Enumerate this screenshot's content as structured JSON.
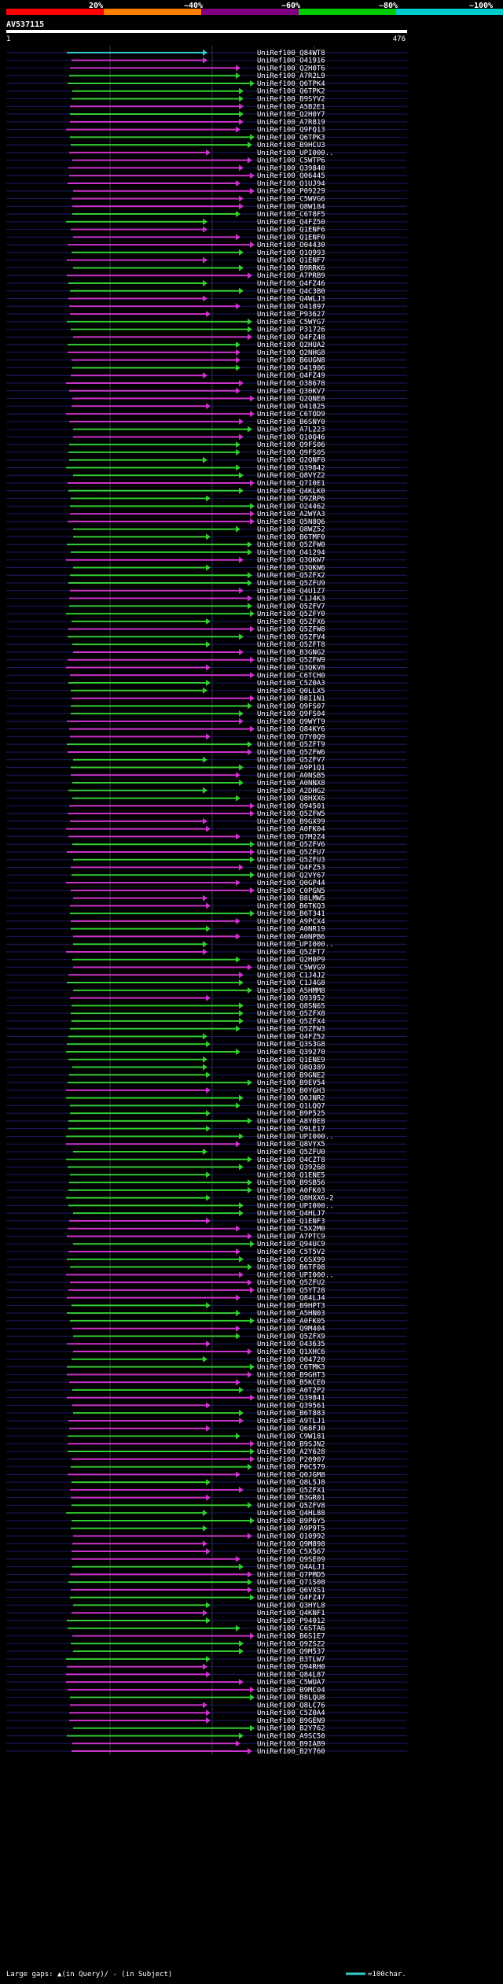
{
  "header": {
    "scale_labels": [
      "20%",
      "~40%",
      "~60%",
      "~80%",
      "~100%"
    ],
    "scale_colors": [
      "#ff0000",
      "#ff8000",
      "#800080",
      "#00cc00",
      "#00cccc"
    ],
    "query_id": "AV537115",
    "query_start": "1",
    "query_end": "476"
  },
  "footer": {
    "gaps_text": "Large gaps: ▲(in Query)/ - (in Subject)",
    "scale_text": "=100char."
  },
  "colors": {
    "magenta": "#cc33cc",
    "green": "#33cc33",
    "cyan": "#33cccc"
  },
  "chart_data": {
    "type": "alignment",
    "query_length": 476,
    "hits": [
      "UniRef100_Q84WT8",
      "UniRef100_O41916",
      "UniRef100_Q2H0T6",
      "UniRef100_A7R2L9",
      "UniRef100_Q6TPK4",
      "UniRef100_Q6TPK2",
      "UniRef100_B9SYV2",
      "UniRef100_A5B2E1",
      "UniRef100_Q2H0Y7",
      "UniRef100_A7R819",
      "UniRef100_Q9FQ13",
      "UniRef100_Q6TPK3",
      "UniRef100_B9HCU3",
      "UniRef100_UPI000..",
      "UniRef100_C5WTP6",
      "UniRef100_Q39840",
      "UniRef100_Q06445",
      "UniRef100_Q1UJ94",
      "UniRef100_P09229",
      "UniRef100_C5WVG6",
      "UniRef100_Q8W184",
      "UniRef100_C6T8F5",
      "UniRef100_Q4FZ50",
      "UniRef100_Q1ENF6",
      "UniRef100_Q1ENF0",
      "UniRef100_O04430",
      "UniRef100_Q1Q993",
      "UniRef100_Q1ENF7",
      "UniRef100_B9RRK6",
      "UniRef100_A7PRB9",
      "UniRef100_Q4FZ46",
      "UniRef100_Q4C3B0",
      "UniRef100_Q4WLJ3",
      "UniRef100_O41897",
      "UniRef100_P93627",
      "UniRef100_C5WYG7",
      "UniRef100_P31726",
      "UniRef100_Q4FZ48",
      "UniRef100_Q2HUA2",
      "UniRef100_Q2NHG8",
      "UniRef100_B6UGN8",
      "UniRef100_O41906",
      "UniRef100_Q4FZ49",
      "UniRef100_O38678",
      "UniRef100_Q30KV7",
      "UniRef100_Q2QNE8",
      "UniRef100_O41825",
      "UniRef100_C6TOD9",
      "UniRef100_B6SNY0",
      "UniRef100_A7L223",
      "UniRef100_Q10Q46",
      "UniRef100_Q9FS06",
      "UniRef100_Q9FS05",
      "UniRef100_Q2QNF0",
      "UniRef100_Q39842",
      "UniRef100_Q8VYZ2",
      "UniRef100_Q7I0E1",
      "UniRef100_Q4KLK0",
      "UniRef100_Q9ZRP6",
      "UniRef100_O24462",
      "UniRef100_A2WYA3",
      "UniRef100_Q5N8Q6",
      "UniRef100_Q8WZ52",
      "UniRef100_B6TMF0",
      "UniRef100_Q5ZFW0",
      "UniRef100_O41294",
      "UniRef100_Q3QKW7",
      "UniRef100_Q3QKW6",
      "UniRef100_Q5ZFX2",
      "UniRef100_Q5ZFU9",
      "UniRef100_Q4U1Z7",
      "UniRef100_C1J4K3",
      "UniRef100_Q5ZFV7",
      "UniRef100_Q5ZFY0",
      "UniRef100_Q5ZFX6",
      "UniRef100_Q5ZFW8",
      "UniRef100_Q5ZFV4",
      "UniRef100_Q5ZFT8",
      "UniRef100_B3GNG2",
      "UniRef100_Q5ZFW9",
      "UniRef100_Q3QKV8",
      "UniRef100_C6TCH0",
      "UniRef100_C5Z0A3",
      "UniRef100_Q0LLX5",
      "UniRef100_B8I1N1",
      "UniRef100_Q9FS07",
      "UniRef100_Q9FS04",
      "UniRef100_Q9WYT9",
      "UniRef100_Q84KY6",
      "UniRef100_Q7Y0Q9",
      "UniRef100_Q5ZFT9",
      "UniRef100_Q5ZFW6",
      "UniRef100_Q5ZFV7",
      "UniRef100_A9P1Q1",
      "UniRef100_A0NSB5",
      "UniRef100_A0NNX8",
      "UniRef100_A2DHG2",
      "UniRef100_Q8HXX6",
      "UniRef100_Q94501",
      "UniRef100_Q5ZFW5",
      "UniRef100_B9GX99",
      "UniRef100_A0FK04",
      "UniRef100_Q7M2Z4",
      "UniRef100_Q5ZFV6",
      "UniRef100_Q5ZFU7",
      "UniRef100_Q5ZFU3",
      "UniRef100_Q4FZ53",
      "UniRef100_Q2VY67",
      "UniRef100_Q0GP44",
      "UniRef100_C0PGN5",
      "UniRef100_B8LMW5",
      "UniRef100_B6TKQ3",
      "UniRef100_B6T341",
      "UniRef100_A9PCX4",
      "UniRef100_A0NR19",
      "UniRef100_A0NPB6",
      "UniRef100_UPI000..",
      "UniRef100_Q5ZFT7",
      "UniRef100_Q2H0P9",
      "UniRef100_C5WVG9",
      "UniRef100_C1J4J2",
      "UniRef100_C1J4G8",
      "UniRef100_A5HMM8",
      "UniRef100_Q93952",
      "UniRef100_Q8SN65",
      "UniRef100_Q5ZFX8",
      "UniRef100_Q5ZFX4",
      "UniRef100_Q5ZFW3",
      "UniRef100_Q4FZ52",
      "UniRef100_Q3S3G8",
      "UniRef100_Q39270",
      "UniRef100_Q1ENE9",
      "UniRef100_Q8Q389",
      "UniRef100_B9GNE2",
      "UniRef100_B9EV54",
      "UniRef100_B0YGH3",
      "UniRef100_Q0JNR2",
      "UniRef100_Q1LQQ7",
      "UniRef100_B9P525",
      "UniRef100_A8Y0E8",
      "UniRef100_Q9LE17",
      "UniRef100_UPI000..",
      "UniRef100_Q8VYX5",
      "UniRef100_Q5ZFU0",
      "UniRef100_Q4CZT8",
      "UniRef100_Q39268",
      "UniRef100_Q1ENE5",
      "UniRef100_B9SB56",
      "UniRef100_A0FK03",
      "UniRef100_Q8HXX6-2",
      "UniRef100_UPI000..",
      "UniRef100_Q4HLJ7",
      "UniRef100_Q1ENF3",
      "UniRef100_C5X2M0",
      "UniRef100_A7PTC9",
      "UniRef100_Q94UC9",
      "UniRef100_C5T5V2",
      "UniRef100_C6SX99",
      "UniRef100_B6TF08",
      "UniRef100_UPI000..",
      "UniRef100_Q5ZFU2",
      "UniRef100_Q5YT28",
      "UniRef100_Q84LJ4",
      "UniRef100_B9HPT3",
      "UniRef100_A5HN03",
      "UniRef100_A0FK05",
      "UniRef100_Q9M404",
      "UniRef100_Q5ZFX9",
      "UniRef100_O43635",
      "UniRef100_Q1XHC6",
      "UniRef100_O04720",
      "UniRef100_C6TMK3",
      "UniRef100_B9GHT3",
      "UniRef100_B5KCE0",
      "UniRef100_A0T2P2",
      "UniRef100_Q39841",
      "UniRef100_Q39561",
      "UniRef100_B6T883",
      "UniRef100_A9TLJ1",
      "UniRef100_Q68FJ0",
      "UniRef100_C9W181",
      "UniRef100_B9SJN2",
      "UniRef100_A2Y628",
      "UniRef100_P20907",
      "UniRef100_P0C579",
      "UniRef100_Q0JGM8",
      "UniRef100_Q8L5J8",
      "UniRef100_Q5ZFX1",
      "UniRef100_B3GR01",
      "UniRef100_Q5ZFV8",
      "UniRef100_Q4HL88",
      "UniRef100_B9P6Y5",
      "UniRef100_A9P9T5",
      "UniRef100_Q10992",
      "UniRef100_Q9M898",
      "UniRef100_C5X567",
      "UniRef100_Q9SE09",
      "UniRef100_Q4ALJ1",
      "UniRef100_Q7PMD5",
      "UniRef100_Q71S08",
      "UniRef100_Q6VXS1",
      "UniRef100_Q4FZ47",
      "UniRef100_Q3HYL8",
      "UniRef100_Q4KNF1",
      "UniRef100_P94012",
      "UniRef100_C6STA6",
      "UniRef100_B6S1E7",
      "UniRef100_Q9ZSZ2",
      "UniRef100_Q9M537",
      "UniRef100_B3TLW7",
      "UniRef100_Q94RH0",
      "UniRef100_Q84L87",
      "UniRef100_C5WUA7",
      "UniRef100_B9MC04",
      "UniRef100_B8LQU8",
      "UniRef100_Q8LC76",
      "UniRef100_C5Z0A4",
      "UniRef100_B9GEN9",
      "UniRef100_B2Y762",
      "UniRef100_A9SC50",
      "UniRef100_B9IAB9",
      "UniRef100_B2Y760"
    ]
  }
}
